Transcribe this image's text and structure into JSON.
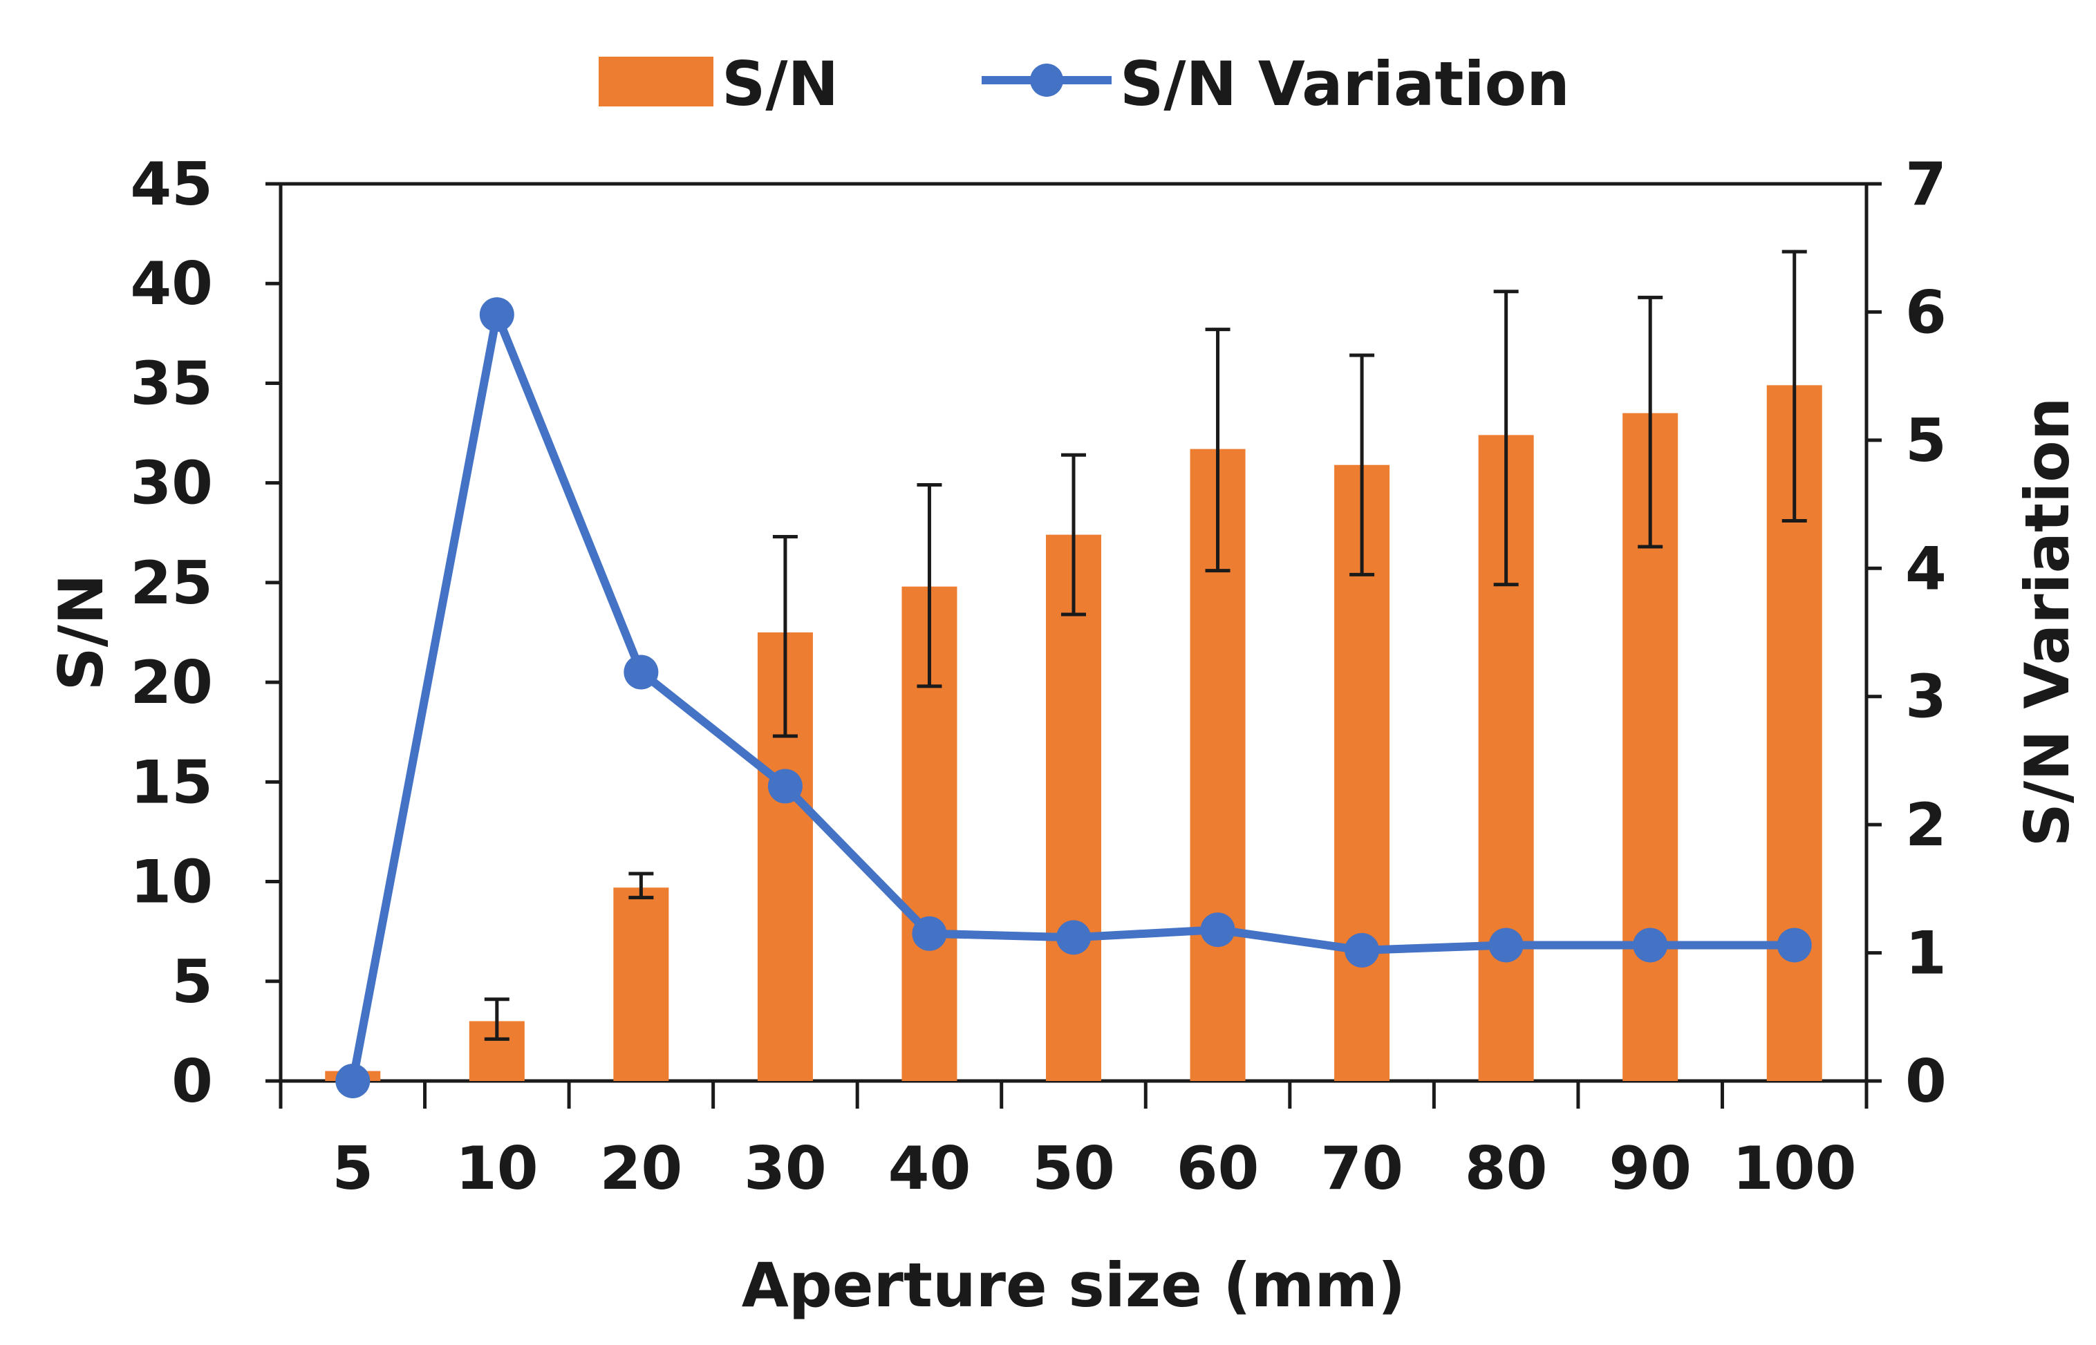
{
  "chart_data": {
    "type": "bar",
    "title": "",
    "categories": [
      "5",
      "10",
      "20",
      "30",
      "40",
      "50",
      "60",
      "70",
      "80",
      "90",
      "100"
    ],
    "xlabel": "Aperture size (mm)",
    "ylabel": "S/N",
    "y2label": "S/N Variation",
    "ylim": [
      0,
      45
    ],
    "y2lim": [
      0,
      7
    ],
    "yticks": [
      "0",
      "5",
      "10",
      "15",
      "20",
      "25",
      "30",
      "35",
      "40",
      "45"
    ],
    "y2ticks": [
      "0",
      "1",
      "2",
      "3",
      "4",
      "5",
      "6",
      "7"
    ],
    "legend_position": "top-center",
    "grid": false,
    "series": [
      {
        "name": "S/N",
        "kind": "bar",
        "axis": "left",
        "color": "#ED7D31",
        "values": [
          0.5,
          3.0,
          9.7,
          22.5,
          24.8,
          27.4,
          31.7,
          30.9,
          32.4,
          33.5,
          34.9
        ],
        "error_low": [
          0.5,
          2.1,
          9.2,
          17.3,
          19.8,
          23.4,
          25.6,
          25.4,
          24.9,
          26.8,
          28.1
        ],
        "error_high": [
          0.5,
          4.1,
          10.4,
          27.3,
          29.9,
          31.4,
          37.7,
          36.4,
          39.6,
          39.3,
          41.6
        ]
      },
      {
        "name": "S/N Variation",
        "kind": "line",
        "axis": "right",
        "color": "#4472C4",
        "values": [
          0.0,
          5.98,
          3.19,
          2.3,
          1.15,
          1.12,
          1.18,
          1.02,
          1.06,
          1.06,
          1.06
        ]
      }
    ]
  }
}
